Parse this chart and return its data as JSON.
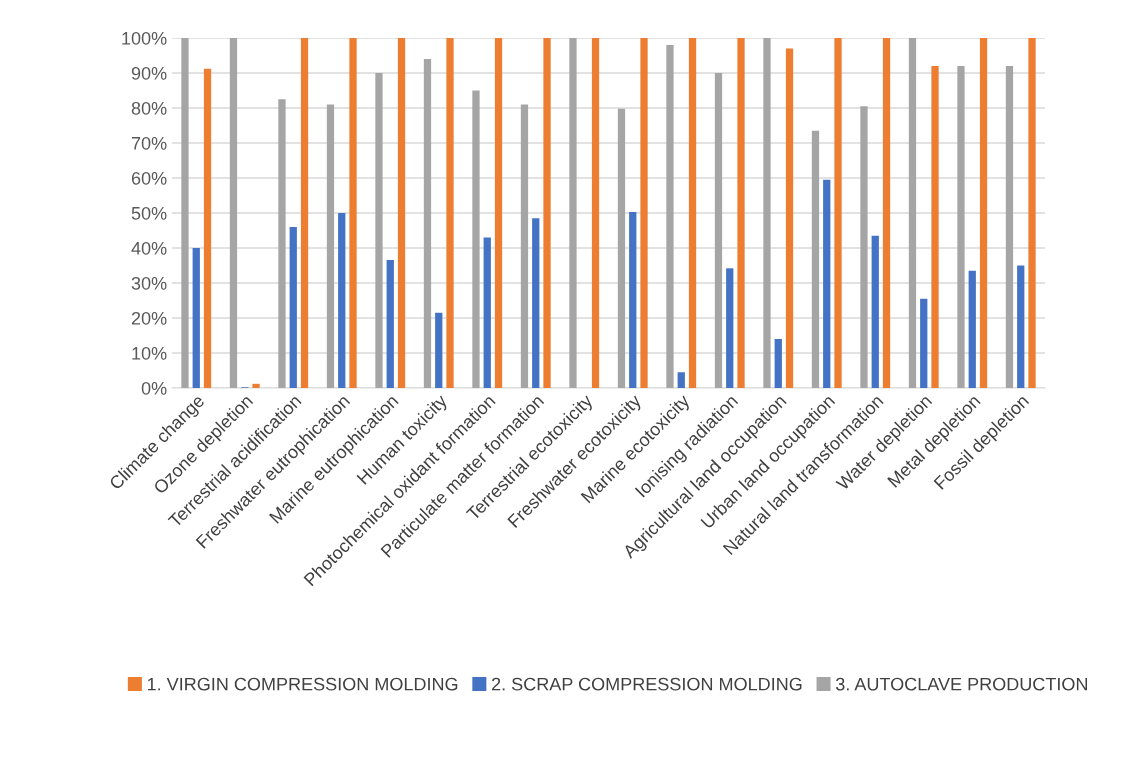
{
  "chart_data": {
    "type": "bar",
    "categories": [
      "Climate change",
      "Ozone depletion",
      "Terrestrial acidification",
      "Freshwater eutrophication",
      "Marine eutrophication",
      "Human toxicity",
      "Photochemical oxidant formation",
      "Particulate matter formation",
      "Terrestrial ecotoxicity",
      "Freshwater ecotoxicity",
      "Marine ecotoxicity",
      "Ionising radiation",
      "Agricultural land occupation",
      "Urban land occupation",
      "Natural land transformation",
      "Water depletion",
      "Metal depletion",
      "Fossil depletion"
    ],
    "series": [
      {
        "name": "1. VIRGIN COMPRESSION MOLDING",
        "color": "#ed7d31",
        "values": [
          91.2,
          1.2,
          100,
          100,
          100,
          100,
          100,
          100,
          100,
          100,
          100,
          100,
          97,
          100,
          100,
          92,
          100,
          100
        ]
      },
      {
        "name": "2. SCRAP COMPRESSION MOLDING",
        "color": "#4472c4",
        "values": [
          40,
          0.2,
          46,
          50,
          36.6,
          21.5,
          43,
          48.5,
          0,
          50.3,
          4.5,
          34.2,
          14,
          59.5,
          43.5,
          25.5,
          33.5,
          35
        ]
      },
      {
        "name": "3. AUTOCLAVE PRODUCTION",
        "color": "#a5a5a5",
        "values": [
          100,
          100,
          82.5,
          81,
          90,
          94,
          85,
          81,
          100,
          79.8,
          98,
          90,
          100,
          73.5,
          80.5,
          100,
          92,
          92
        ]
      }
    ],
    "ylim": [
      0,
      100
    ],
    "yticks": [
      {
        "value": 0,
        "label": "0%"
      },
      {
        "value": 10,
        "label": "10%"
      },
      {
        "value": 20,
        "label": "20%"
      },
      {
        "value": 30,
        "label": "30%"
      },
      {
        "value": 40,
        "label": "40%"
      },
      {
        "value": 50,
        "label": "50%"
      },
      {
        "value": 60,
        "label": "60%"
      },
      {
        "value": 70,
        "label": "70%"
      },
      {
        "value": 80,
        "label": "80%"
      },
      {
        "value": 90,
        "label": "90%"
      },
      {
        "value": 100,
        "label": "100%"
      }
    ],
    "grid": "y",
    "legend": "bottom"
  }
}
